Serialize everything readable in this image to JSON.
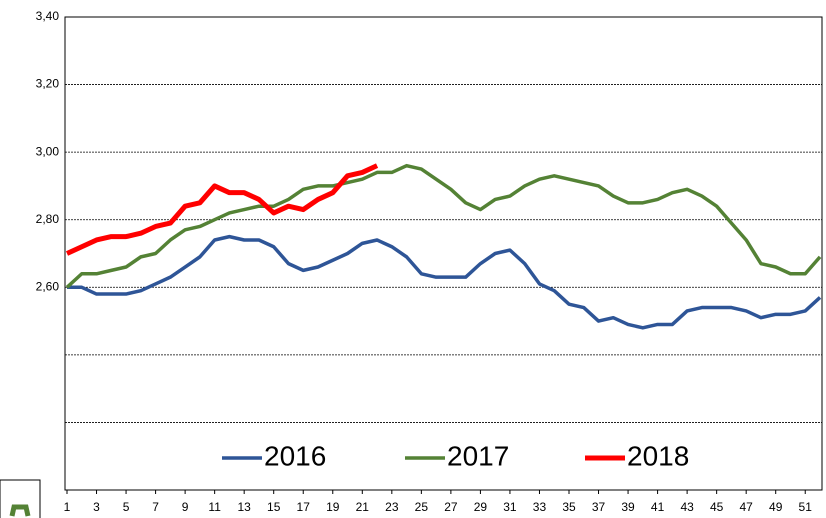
{
  "chart_data": {
    "type": "line",
    "x": [
      1,
      2,
      3,
      4,
      5,
      6,
      7,
      8,
      9,
      10,
      11,
      12,
      13,
      14,
      15,
      16,
      17,
      18,
      19,
      20,
      21,
      22,
      23,
      24,
      25,
      26,
      27,
      28,
      29,
      30,
      31,
      32,
      33,
      34,
      35,
      36,
      37,
      38,
      39,
      40,
      41,
      42,
      43,
      44,
      45,
      46,
      47,
      48,
      49,
      50,
      51,
      52
    ],
    "xlim": [
      1,
      52
    ],
    "xticks": [
      1,
      3,
      5,
      7,
      9,
      11,
      13,
      15,
      17,
      19,
      21,
      23,
      25,
      27,
      29,
      31,
      33,
      35,
      37,
      39,
      41,
      43,
      45,
      47,
      49,
      51
    ],
    "ylim": [
      2.0,
      3.4
    ],
    "yticks": [
      {
        "value": 3.4,
        "label": "3,40"
      },
      {
        "value": 3.2,
        "label": "3,20"
      },
      {
        "value": 3.0,
        "label": "3,00"
      },
      {
        "value": 2.8,
        "label": "2,80"
      },
      {
        "value": 2.6,
        "label": "2,60"
      },
      {
        "value": 2.4
      },
      {
        "value": 2.2
      }
    ],
    "grid": true,
    "series": [
      {
        "name": "2016",
        "color": "#2e5597",
        "values": [
          2.6,
          2.6,
          2.58,
          2.58,
          2.58,
          2.59,
          2.61,
          2.63,
          2.66,
          2.69,
          2.74,
          2.75,
          2.74,
          2.74,
          2.72,
          2.67,
          2.65,
          2.66,
          2.68,
          2.7,
          2.73,
          2.74,
          2.72,
          2.69,
          2.64,
          2.63,
          2.63,
          2.63,
          2.67,
          2.7,
          2.71,
          2.67,
          2.61,
          2.59,
          2.55,
          2.54,
          2.5,
          2.51,
          2.49,
          2.48,
          2.49,
          2.49,
          2.53,
          2.54,
          2.54,
          2.54,
          2.53,
          2.51,
          2.52,
          2.52,
          2.53,
          2.57
        ]
      },
      {
        "name": "2017",
        "color": "#548235",
        "values": [
          2.6,
          2.64,
          2.64,
          2.65,
          2.66,
          2.69,
          2.7,
          2.74,
          2.77,
          2.78,
          2.8,
          2.82,
          2.83,
          2.84,
          2.84,
          2.86,
          2.89,
          2.9,
          2.9,
          2.91,
          2.92,
          2.94,
          2.94,
          2.96,
          2.95,
          2.92,
          2.89,
          2.85,
          2.83,
          2.86,
          2.87,
          2.9,
          2.92,
          2.93,
          2.92,
          2.91,
          2.9,
          2.87,
          2.85,
          2.85,
          2.86,
          2.88,
          2.89,
          2.87,
          2.84,
          2.79,
          2.74,
          2.67,
          2.66,
          2.64,
          2.64,
          2.69
        ]
      },
      {
        "name": "2018",
        "color": "#ff0000",
        "values": [
          2.7,
          2.72,
          2.74,
          2.75,
          2.75,
          2.76,
          2.78,
          2.79,
          2.84,
          2.85,
          2.9,
          2.88,
          2.88,
          2.86,
          2.82,
          2.84,
          2.83,
          2.86,
          2.88,
          2.93,
          2.94,
          2.96,
          null,
          null,
          null,
          null,
          null,
          null,
          null,
          null,
          null,
          null,
          null,
          null,
          null,
          null,
          null,
          null,
          null,
          null,
          null,
          null,
          null,
          null,
          null,
          null,
          null,
          null,
          null,
          null,
          null,
          null
        ]
      }
    ]
  }
}
